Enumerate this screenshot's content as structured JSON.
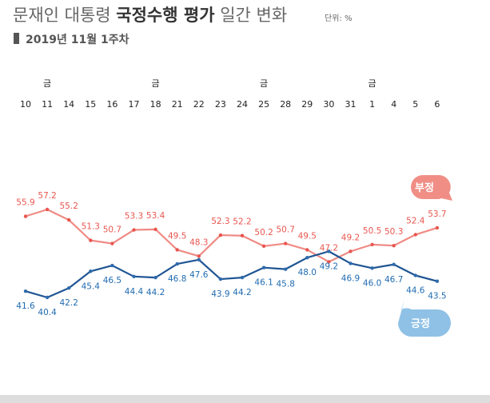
{
  "header": {
    "title_pre": "문재인 대통령 ",
    "title_bold": "국정수행 평가",
    "title_post": " 일간 변화",
    "unit": "단위: %",
    "subtitle": "2019년 11월 1주차"
  },
  "colors": {
    "negative": "#e8564f",
    "positive": "#2e6bad",
    "negative_line": "#f08a84",
    "positive_line": "#1f5594",
    "negative_bubble": "#f08e86",
    "positive_bubble": "#8fc1e6",
    "positive_text": "#1f6bb0",
    "title": "#666666",
    "bottom_bar": "#dddddd"
  },
  "chart_data": {
    "type": "line",
    "categories": [
      "10",
      "11",
      "14",
      "15",
      "16",
      "17",
      "18",
      "21",
      "22",
      "23",
      "24",
      "25",
      "28",
      "29",
      "30",
      "31",
      "1",
      "4",
      "5",
      "6"
    ],
    "day_markers": [
      "",
      "금",
      "",
      "",
      "",
      "",
      "금",
      "",
      "",
      "",
      "",
      "금",
      "",
      "",
      "",
      "",
      "금",
      "",
      "",
      ""
    ],
    "series": [
      {
        "name": "부정",
        "values": [
          55.9,
          57.2,
          55.2,
          51.3,
          50.7,
          53.3,
          53.4,
          49.5,
          48.3,
          52.3,
          52.2,
          50.2,
          50.7,
          49.5,
          47.2,
          49.2,
          50.5,
          50.3,
          52.4,
          53.7
        ]
      },
      {
        "name": "긍정",
        "values": [
          41.6,
          40.4,
          42.2,
          45.4,
          46.5,
          44.4,
          44.2,
          46.8,
          47.6,
          43.9,
          44.2,
          46.1,
          45.8,
          48.0,
          49.2,
          46.9,
          46.0,
          46.7,
          44.6,
          43.5
        ]
      }
    ],
    "ylim": [
      30,
      75
    ],
    "grid": false,
    "legend": "speech bubbles on right"
  }
}
